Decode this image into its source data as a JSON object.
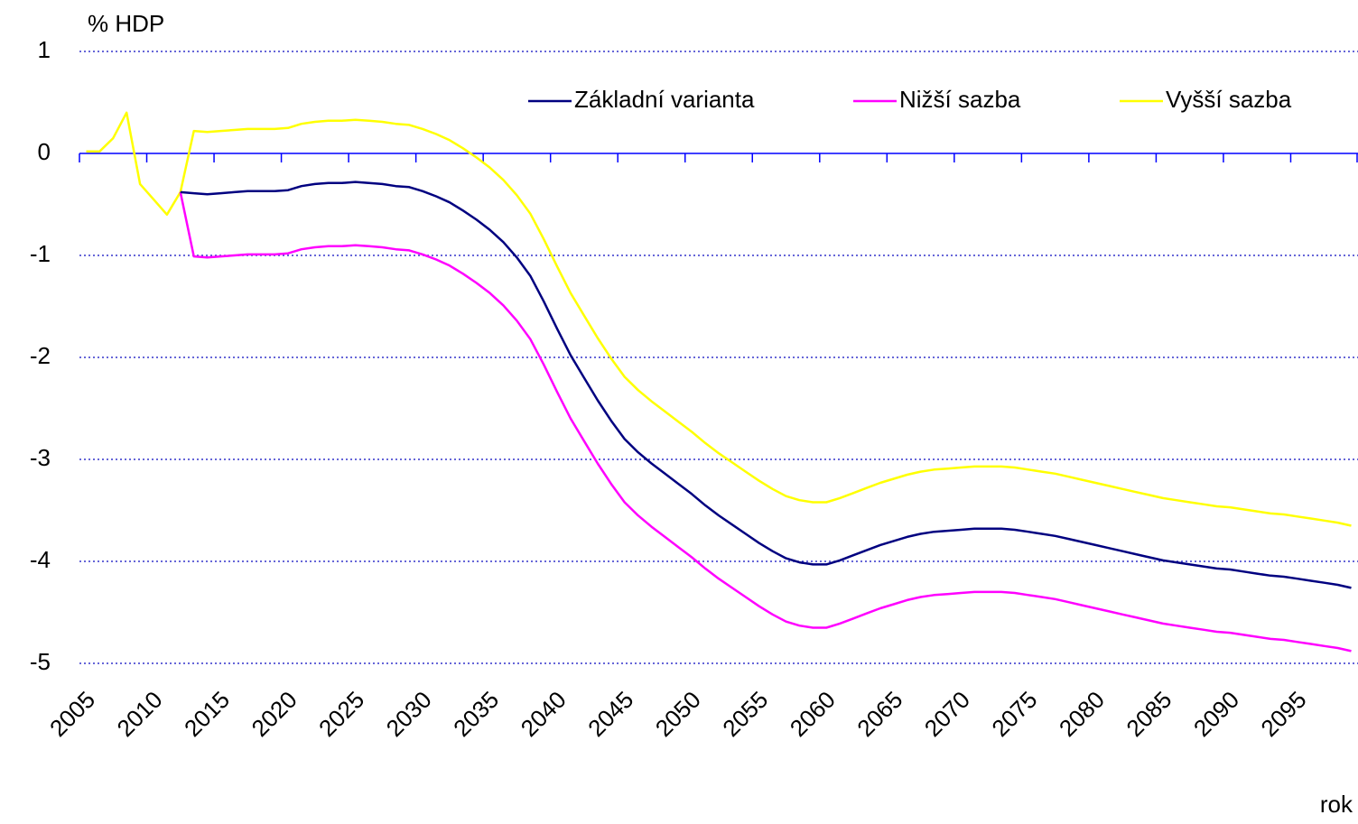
{
  "chart_data": {
    "type": "line",
    "ylabel": "% HDP",
    "xlabel": "rok",
    "categories": [
      2005,
      null,
      null,
      null,
      null,
      2010,
      null,
      null,
      null,
      null,
      2015,
      null,
      null,
      null,
      null,
      2020,
      null,
      null,
      null,
      null,
      2025,
      null,
      null,
      null,
      null,
      2030,
      null,
      null,
      null,
      null,
      2035,
      null,
      null,
      null,
      null,
      2040,
      null,
      null,
      null,
      null,
      2045,
      null,
      null,
      null,
      null,
      2050,
      null,
      null,
      null,
      null,
      2055,
      null,
      null,
      null,
      null,
      2060,
      null,
      null,
      null,
      null,
      2065,
      null,
      null,
      null,
      null,
      2070,
      null,
      null,
      null,
      null,
      2075,
      null,
      null,
      null,
      null,
      2080,
      null,
      null,
      null,
      null,
      2085,
      null,
      null,
      null,
      null,
      2090,
      null,
      null,
      null,
      null,
      2095,
      null,
      null,
      null,
      null
    ],
    "series": [
      {
        "name": "Základní varianta",
        "color": "#000080",
        "values": [
          null,
          null,
          null,
          null,
          null,
          null,
          null,
          -0.38,
          -0.39,
          -0.4,
          -0.39,
          -0.38,
          -0.37,
          -0.37,
          -0.37,
          -0.36,
          -0.32,
          -0.3,
          -0.29,
          -0.29,
          -0.28,
          -0.29,
          -0.3,
          -0.32,
          -0.33,
          -0.37,
          -0.42,
          -0.48,
          -0.56,
          -0.65,
          -0.75,
          -0.87,
          -1.02,
          -1.2,
          -1.45,
          -1.72,
          -1.98,
          -2.2,
          -2.42,
          -2.62,
          -2.8,
          -2.93,
          -3.04,
          -3.14,
          -3.24,
          -3.34,
          -3.45,
          -3.55,
          -3.64,
          -3.73,
          -3.82,
          -3.9,
          -3.97,
          -4.01,
          -4.03,
          -4.03,
          -3.99,
          -3.94,
          -3.89,
          -3.84,
          -3.8,
          -3.76,
          -3.73,
          -3.71,
          -3.7,
          -3.69,
          -3.68,
          -3.68,
          -3.68,
          -3.69,
          -3.71,
          -3.73,
          -3.75,
          -3.78,
          -3.81,
          -3.84,
          -3.87,
          -3.9,
          -3.93,
          -3.96,
          -3.99,
          -4.01,
          -4.03,
          -4.05,
          -4.07,
          -4.08,
          -4.1,
          -4.12,
          -4.14,
          -4.15,
          -4.17,
          -4.19,
          -4.21,
          -4.23,
          -4.26
        ]
      },
      {
        "name": "Nižší sazba",
        "color": "#ff00ff",
        "values": [
          null,
          null,
          null,
          null,
          null,
          null,
          null,
          -0.38,
          -1.01,
          -1.02,
          -1.01,
          -1.0,
          -0.99,
          -0.99,
          -0.99,
          -0.98,
          -0.94,
          -0.92,
          -0.91,
          -0.91,
          -0.9,
          -0.91,
          -0.92,
          -0.94,
          -0.95,
          -0.99,
          -1.04,
          -1.1,
          -1.18,
          -1.27,
          -1.37,
          -1.49,
          -1.64,
          -1.82,
          -2.07,
          -2.34,
          -2.6,
          -2.82,
          -3.04,
          -3.24,
          -3.42,
          -3.55,
          -3.66,
          -3.76,
          -3.86,
          -3.96,
          -4.07,
          -4.17,
          -4.26,
          -4.35,
          -4.44,
          -4.52,
          -4.59,
          -4.63,
          -4.65,
          -4.65,
          -4.61,
          -4.56,
          -4.51,
          -4.46,
          -4.42,
          -4.38,
          -4.35,
          -4.33,
          -4.32,
          -4.31,
          -4.3,
          -4.3,
          -4.3,
          -4.31,
          -4.33,
          -4.35,
          -4.37,
          -4.4,
          -4.43,
          -4.46,
          -4.49,
          -4.52,
          -4.55,
          -4.58,
          -4.61,
          -4.63,
          -4.65,
          -4.67,
          -4.69,
          -4.7,
          -4.72,
          -4.74,
          -4.76,
          -4.77,
          -4.79,
          -4.81,
          -4.83,
          -4.85,
          -4.88
        ]
      },
      {
        "name": "Vyšší sazba",
        "color": "#ffff00",
        "values": [
          0.02,
          0.02,
          0.15,
          0.4,
          -0.3,
          -0.45,
          -0.6,
          -0.38,
          0.22,
          0.21,
          0.22,
          0.23,
          0.24,
          0.24,
          0.24,
          0.25,
          0.29,
          0.31,
          0.32,
          0.32,
          0.33,
          0.32,
          0.31,
          0.29,
          0.28,
          0.24,
          0.19,
          0.13,
          0.05,
          -0.04,
          -0.14,
          -0.26,
          -0.41,
          -0.59,
          -0.84,
          -1.11,
          -1.37,
          -1.59,
          -1.81,
          -2.01,
          -2.19,
          -2.32,
          -2.43,
          -2.53,
          -2.63,
          -2.73,
          -2.84,
          -2.94,
          -3.03,
          -3.12,
          -3.21,
          -3.29,
          -3.36,
          -3.4,
          -3.42,
          -3.42,
          -3.38,
          -3.33,
          -3.28,
          -3.23,
          -3.19,
          -3.15,
          -3.12,
          -3.1,
          -3.09,
          -3.08,
          -3.07,
          -3.07,
          -3.07,
          -3.08,
          -3.1,
          -3.12,
          -3.14,
          -3.17,
          -3.2,
          -3.23,
          -3.26,
          -3.29,
          -3.32,
          -3.35,
          -3.38,
          -3.4,
          -3.42,
          -3.44,
          -3.46,
          -3.47,
          -3.49,
          -3.51,
          -3.53,
          -3.54,
          -3.56,
          -3.58,
          -3.6,
          -3.62,
          -3.65
        ]
      }
    ],
    "ylim": [
      -5.25,
      1.1
    ],
    "yticks": [
      -5,
      -4,
      -3,
      -2,
      -1,
      0,
      1
    ],
    "grid": true,
    "legend": "top-right"
  }
}
